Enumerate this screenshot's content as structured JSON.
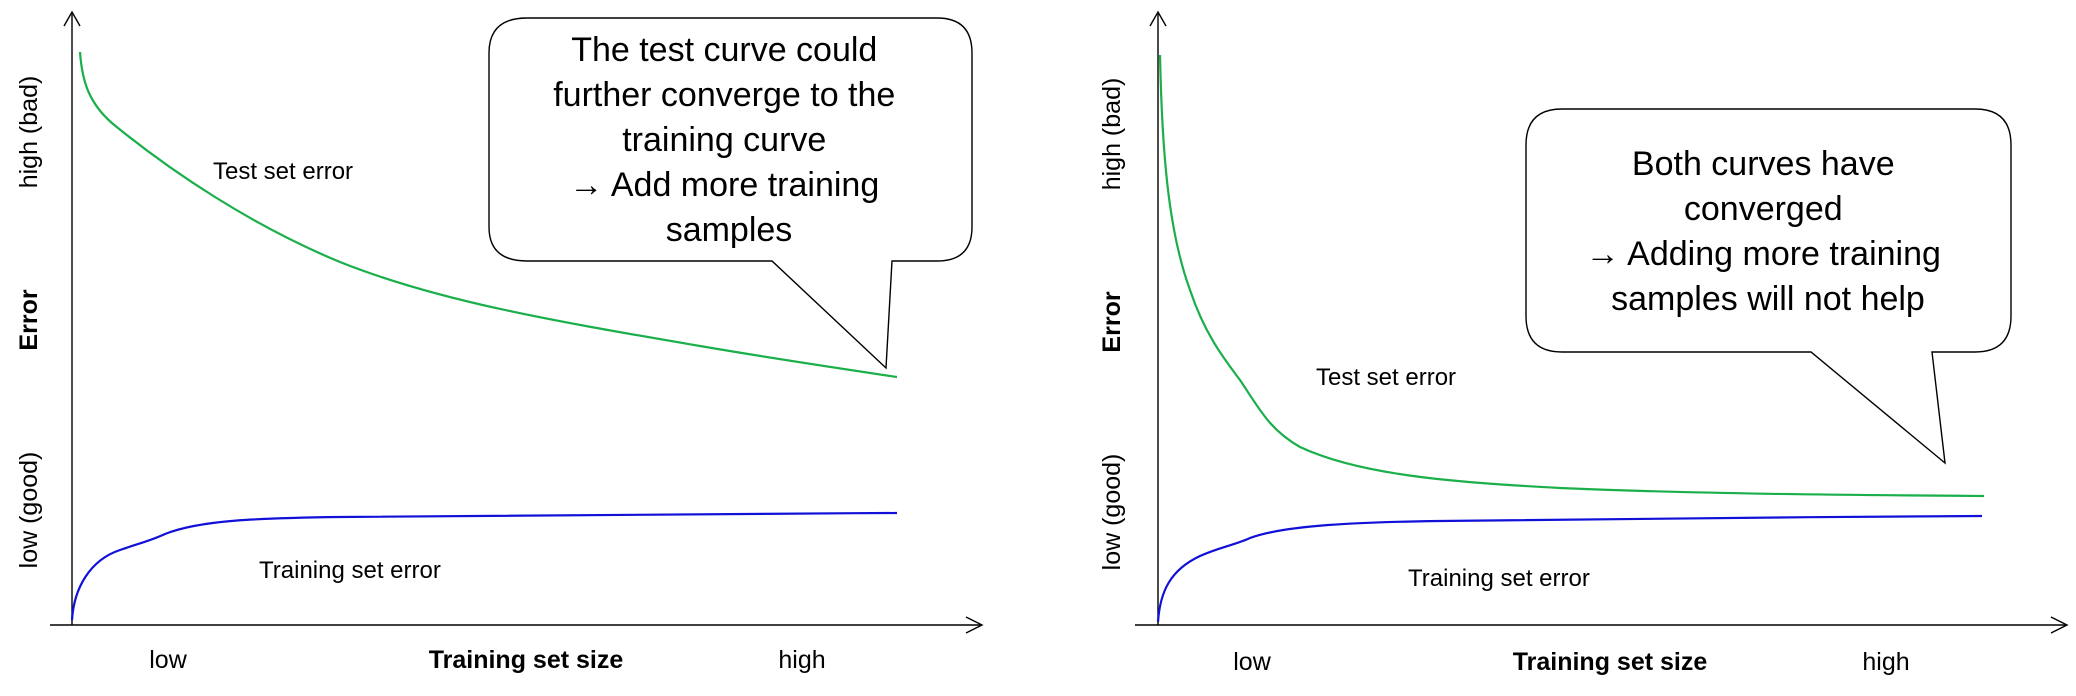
{
  "panels": [
    {
      "y_high": "high (bad)",
      "y_title": "Error",
      "y_low": "low (good)",
      "x_low": "low",
      "x_title": "Training set size",
      "x_high": "high",
      "test_label": "Test set error",
      "train_label": "Training set error",
      "callout": [
        "The test curve could",
        "further converge to the",
        "training curve",
        "→ Add more training",
        "samples"
      ]
    },
    {
      "y_high": "high (bad)",
      "y_title": "Error",
      "y_low": "low (good)",
      "x_low": "low",
      "x_title": "Training set size",
      "x_high": "high",
      "test_label": "Test set error",
      "train_label": "Training set error",
      "callout": [
        "Both curves have",
        "converged",
        "→ Adding more training",
        "samples will not help"
      ]
    }
  ]
}
